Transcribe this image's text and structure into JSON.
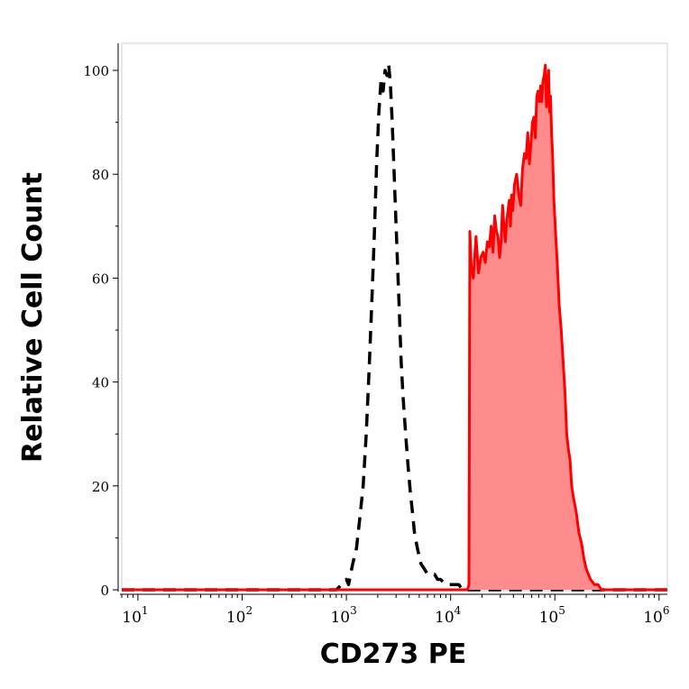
{
  "chart_data": {
    "type": "area",
    "xlabel": "CD273 PE",
    "ylabel": "Relative Cell Count",
    "xscale": "log",
    "xlim": [
      7,
      1200000
    ],
    "ylim": [
      0,
      100
    ],
    "grid": false,
    "legend": "none",
    "y_ticks": [
      {
        "value": 0,
        "label": "0"
      },
      {
        "value": 20,
        "label": "20"
      },
      {
        "value": 40,
        "label": "40"
      },
      {
        "value": 60,
        "label": "60"
      },
      {
        "value": 80,
        "label": "80"
      },
      {
        "value": 100,
        "label": "100"
      }
    ],
    "x_ticks": [
      {
        "value": 10,
        "base": "10",
        "exp": "1"
      },
      {
        "value": 100,
        "base": "10",
        "exp": "2"
      },
      {
        "value": 1000,
        "base": "10",
        "exp": "3"
      },
      {
        "value": 10000,
        "base": "10",
        "exp": "4"
      },
      {
        "value": 100000,
        "base": "10",
        "exp": "5"
      },
      {
        "value": 1000000,
        "base": "10",
        "exp": "6"
      }
    ],
    "series": [
      {
        "style": "dashed-line",
        "color": "#000000",
        "x": [
          7,
          500,
          800,
          900,
          1000,
          1050,
          1150,
          1250,
          1350,
          1450,
          1550,
          1650,
          1750,
          1850,
          1950,
          2050,
          2150,
          2250,
          2350,
          2450,
          2550,
          2650,
          2750,
          2900,
          3050,
          3200,
          3350,
          3500,
          3700,
          3900,
          4100,
          4300,
          4500,
          4800,
          5200,
          5600,
          6000,
          6500,
          7000,
          7500,
          8000,
          9000,
          10000,
          11000,
          12000,
          13000,
          14000,
          15000,
          20000,
          50000,
          100000,
          300000,
          1200000
        ],
        "y": [
          0,
          0,
          0,
          1,
          2,
          1,
          5,
          8,
          14,
          20,
          30,
          42,
          55,
          68,
          82,
          92,
          98,
          96,
          100,
          99,
          101,
          97,
          90,
          78,
          66,
          55,
          44,
          37,
          30,
          24,
          19,
          15,
          11,
          8,
          5,
          4,
          3,
          3,
          3,
          2,
          2,
          1,
          1,
          1,
          1,
          0,
          0,
          0,
          0,
          0,
          0,
          0,
          0
        ]
      },
      {
        "style": "filled-area",
        "color": "#ff0000",
        "fill": "#ff8c8c",
        "x": [
          7,
          1000,
          10000,
          14500,
          15000,
          15300,
          15800,
          16500,
          17500,
          18500,
          19500,
          20500,
          21500,
          22500,
          23500,
          24500,
          25500,
          26500,
          27500,
          28500,
          29500,
          30500,
          31500,
          32500,
          33500,
          34500,
          35500,
          36500,
          37500,
          38500,
          39500,
          41000,
          43000,
          45000,
          47000,
          49000,
          51000,
          53000,
          55000,
          57000,
          59000,
          61000,
          63000,
          65000,
          67000,
          69000,
          71000,
          73000,
          75000,
          77000,
          79000,
          81000,
          83000,
          85000,
          87000,
          89000,
          91000,
          93000,
          95000,
          98000,
          102000,
          106000,
          110000,
          115000,
          120000,
          125000,
          130000,
          135000,
          140000,
          145000,
          150000,
          160000,
          170000,
          180000,
          190000,
          200000,
          220000,
          240000,
          260000,
          280000,
          300000,
          350000,
          400000,
          500000,
          1200000
        ],
        "y": [
          0,
          0,
          0,
          0,
          1,
          69,
          62,
          60,
          68,
          61,
          64,
          65,
          63,
          67,
          66,
          70,
          65,
          72,
          69,
          68,
          64,
          67,
          74,
          70,
          67,
          71,
          73,
          75,
          70,
          76,
          73,
          78,
          80,
          76,
          74,
          81,
          84,
          83,
          88,
          82,
          86,
          90,
          91,
          87,
          95,
          96,
          94,
          97,
          94,
          98,
          99,
          101,
          93,
          96,
          100,
          92,
          95,
          88,
          84,
          75,
          68,
          62,
          55,
          50,
          44,
          38,
          30,
          27,
          25,
          20,
          18,
          15,
          11,
          9,
          6,
          4,
          2,
          1,
          1,
          0,
          0,
          0,
          0,
          0,
          0
        ]
      }
    ]
  }
}
